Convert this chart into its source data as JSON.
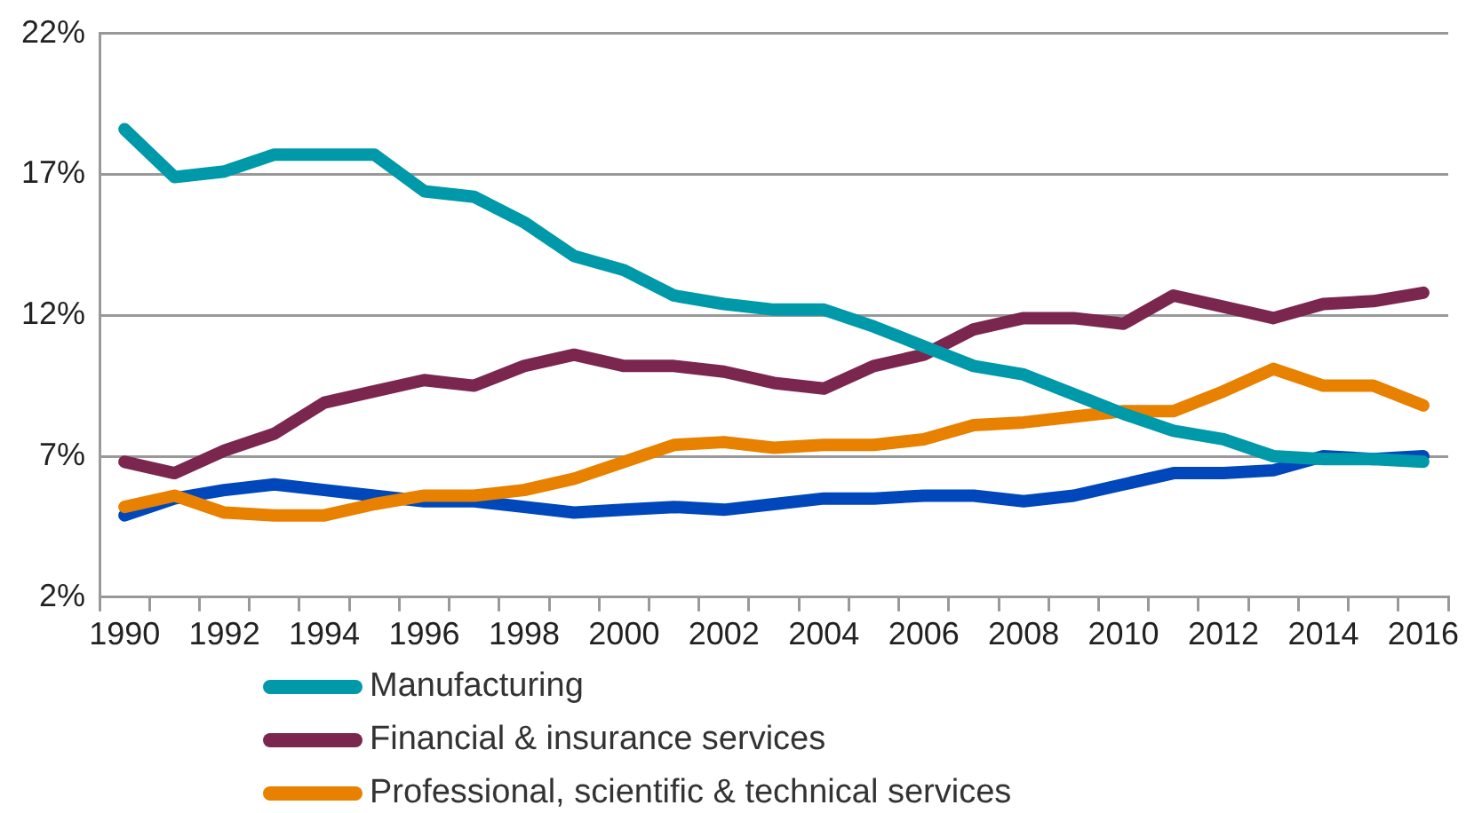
{
  "chart_data": {
    "type": "line",
    "categories": [
      "1990",
      null,
      "1992",
      null,
      "1994",
      null,
      "1996",
      null,
      "1998",
      null,
      "2000",
      null,
      "2002",
      null,
      "2004",
      null,
      "2006",
      null,
      "2008",
      null,
      "2010",
      null,
      "2012",
      null,
      "2014",
      null,
      "2016"
    ],
    "series": [
      {
        "name": "Manufacturing",
        "color": "#0099aa",
        "values": [
          18.6,
          16.9,
          17.1,
          17.7,
          17.7,
          17.7,
          16.4,
          16.2,
          15.3,
          14.1,
          13.6,
          12.7,
          12.4,
          12.2,
          12.2,
          11.6,
          10.9,
          10.2,
          9.9,
          9.2,
          8.5,
          7.9,
          7.6,
          7.0,
          6.9,
          6.9,
          6.8
        ]
      },
      {
        "name": "Financial & insurance services",
        "color": "#7b264f",
        "values": [
          6.8,
          6.4,
          7.2,
          7.8,
          8.9,
          9.3,
          9.7,
          9.5,
          10.2,
          10.6,
          10.2,
          10.2,
          10.0,
          9.6,
          9.4,
          10.2,
          10.6,
          11.5,
          11.9,
          11.9,
          11.7,
          12.7,
          12.3,
          11.9,
          12.4,
          12.5,
          12.8
        ]
      },
      {
        "name": "Professional, scientific & technical services",
        "color": "#e88000",
        "values": [
          5.2,
          5.6,
          5.0,
          4.9,
          4.9,
          5.3,
          5.6,
          5.6,
          5.8,
          6.2,
          6.8,
          7.4,
          7.5,
          7.3,
          7.4,
          7.4,
          7.6,
          8.1,
          8.2,
          8.4,
          8.6,
          8.6,
          9.3,
          10.1,
          9.5,
          9.5,
          8.8
        ]
      },
      {
        "color": "#0047bb",
        "values": [
          4.9,
          5.5,
          5.8,
          6.0,
          5.8,
          5.6,
          5.4,
          5.4,
          5.2,
          5.0,
          5.1,
          5.2,
          5.1,
          5.3,
          5.5,
          5.5,
          5.6,
          5.6,
          5.4,
          5.6,
          6.0,
          6.4,
          6.4,
          6.5,
          7.0,
          6.9,
          7.0
        ]
      }
    ],
    "ylim": [
      2,
      22
    ],
    "yticks": [
      {
        "value": 2,
        "label": "2%"
      },
      {
        "value": 7,
        "label": "7%"
      },
      {
        "value": 12,
        "label": "12%"
      },
      {
        "value": 17,
        "label": "17%"
      },
      {
        "value": 22,
        "label": "22%"
      }
    ],
    "grid": "y",
    "legend": "bottom left",
    "marker": "none",
    "line_style": "solid"
  }
}
